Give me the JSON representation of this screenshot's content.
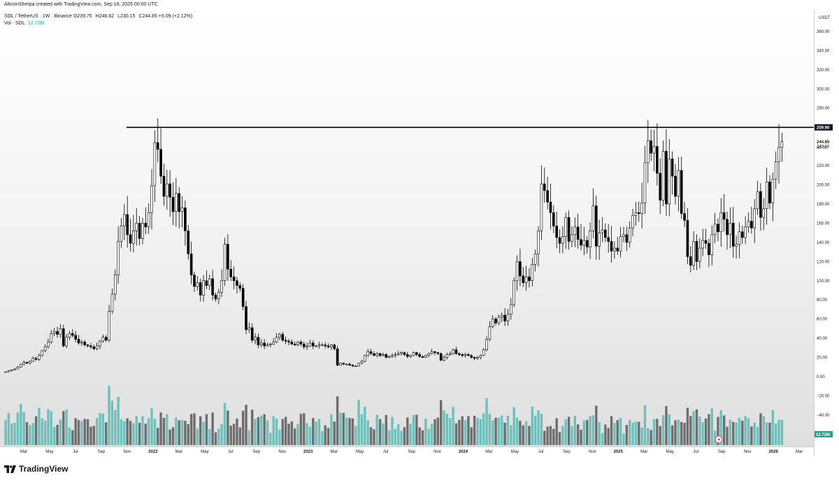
{
  "header": {
    "created_by": "AltcoinSherpa created with TradingView.com, Sep 18, 2025 00:00 UTC",
    "symbol_line": "SOL / TetherUS · 1W · Binance",
    "ohlc": [
      {
        "k": "O",
        "v": "239.75"
      },
      {
        "k": "H",
        "v": "246.62"
      },
      {
        "k": "L",
        "v": "230.15"
      },
      {
        "k": "C",
        "v": "244.85 +5.09 (+2.12%)"
      }
    ],
    "vol_label": "Vol · SOL",
    "vol_value": "12.72M"
  },
  "brand": {
    "name": "TradingView",
    "logo_icon": "tradingview-logo-icon"
  },
  "colors": {
    "candle_up_fill": "#ffffff",
    "candle_down_fill": "#000000",
    "wick": "#000000",
    "volume_up": "#6fc0bb",
    "volume_down": "#6e6e6e",
    "resistance_line": "#000000",
    "price_tag": "#131722",
    "volume_tag": "#2a9d8f",
    "replay_icon": "#d2488c"
  },
  "chart_data": {
    "type": "candlestick",
    "interval": "1W",
    "price_unit": "USDT",
    "ylim": [
      -65,
      370
    ],
    "y_ticks": [
      360,
      340,
      320,
      300,
      280,
      260,
      240,
      220,
      200,
      180,
      160,
      140,
      120,
      100,
      80,
      60,
      40,
      20,
      0,
      -20,
      -40
    ],
    "y_tick_labels": [
      "360.00",
      "340.00",
      "320.00",
      "300.00",
      "280.00",
      "260.00",
      "240.00",
      "220.00",
      "200.00",
      "180.00",
      "160.00",
      "140.00",
      "120.00",
      "100.00",
      "80.00",
      "60.00",
      "40.00",
      "20.00",
      "0.00",
      "−20.00",
      "−40.00"
    ],
    "x_ticks": [
      {
        "label": "Mar",
        "bold": false
      },
      {
        "label": "May",
        "bold": false
      },
      {
        "label": "Jul",
        "bold": false
      },
      {
        "label": "Sep",
        "bold": false
      },
      {
        "label": "Nov",
        "bold": false
      },
      {
        "label": "2022",
        "bold": true
      },
      {
        "label": "Mar",
        "bold": false
      },
      {
        "label": "May",
        "bold": false
      },
      {
        "label": "Jul",
        "bold": false
      },
      {
        "label": "Sep",
        "bold": false
      },
      {
        "label": "Nov",
        "bold": false
      },
      {
        "label": "2023",
        "bold": true
      },
      {
        "label": "Mar",
        "bold": false
      },
      {
        "label": "May",
        "bold": false
      },
      {
        "label": "Jul",
        "bold": false
      },
      {
        "label": "Sep",
        "bold": false
      },
      {
        "label": "Nov",
        "bold": false
      },
      {
        "label": "2024",
        "bold": true
      },
      {
        "label": "Mar",
        "bold": false
      },
      {
        "label": "May",
        "bold": false
      },
      {
        "label": "Jul",
        "bold": false
      },
      {
        "label": "Sep",
        "bold": false
      },
      {
        "label": "Nov",
        "bold": false
      },
      {
        "label": "2025",
        "bold": true
      },
      {
        "label": "Mar",
        "bold": false
      },
      {
        "label": "May",
        "bold": false
      },
      {
        "label": "Jul",
        "bold": false
      },
      {
        "label": "Sep",
        "bold": false
      },
      {
        "label": "Nov",
        "bold": false
      },
      {
        "label": "2026",
        "bold": true
      },
      {
        "label": "Mar",
        "bold": false
      }
    ],
    "horizontal_line": {
      "value": 259.9,
      "label": "259.90"
    },
    "last_price": {
      "value": 244.85,
      "label": "244.85",
      "countdown": "4d 0h"
    },
    "volume_label": "12.72M",
    "closes": [
      5,
      6,
      7,
      8,
      10,
      13,
      15,
      14,
      16,
      19,
      18,
      22,
      27,
      31,
      36,
      45,
      47,
      44,
      50,
      32,
      41,
      45,
      43,
      39,
      35,
      36,
      33,
      32,
      31,
      29,
      32,
      37,
      41,
      38,
      68,
      86,
      106,
      141,
      157,
      169,
      148,
      139,
      152,
      160,
      144,
      160,
      156,
      171,
      199,
      244,
      237,
      209,
      188,
      201,
      187,
      172,
      191,
      172,
      176,
      152,
      128,
      106,
      94,
      98,
      85,
      100,
      95,
      102,
      85,
      81,
      88,
      100,
      138,
      112,
      104,
      100,
      95,
      92,
      73,
      49,
      51,
      38,
      41,
      33,
      35,
      32,
      33,
      34,
      36,
      41,
      44,
      38,
      37,
      36,
      34,
      33,
      36,
      34,
      31,
      32,
      35,
      32,
      32,
      33,
      33,
      32,
      31,
      33,
      29,
      12,
      14,
      13,
      13,
      12,
      11,
      11,
      14,
      16,
      22,
      26,
      24,
      22,
      24,
      22,
      23,
      20,
      21,
      22,
      23,
      24,
      25,
      23,
      21,
      22,
      25,
      23,
      21,
      20,
      22,
      24,
      26,
      25,
      24,
      17,
      20,
      23,
      24,
      28,
      24,
      23,
      22,
      23,
      22,
      20,
      19,
      20,
      22,
      28,
      39,
      52,
      60,
      56,
      62,
      64,
      58,
      65,
      75,
      100,
      120,
      105,
      98,
      104,
      100,
      117,
      128,
      152,
      201,
      194,
      182,
      171,
      157,
      145,
      139,
      146,
      166,
      141,
      148,
      156,
      143,
      137,
      142,
      135,
      152,
      178,
      136,
      150,
      153,
      145,
      141,
      131,
      134,
      131,
      146,
      148,
      140,
      155,
      168,
      171,
      170,
      181,
      223,
      246,
      233,
      240,
      212,
      184,
      235,
      180,
      227,
      209,
      188,
      215,
      170,
      163,
      125,
      116,
      141,
      120,
      134,
      142,
      139,
      127,
      148,
      159,
      151,
      171,
      164,
      148,
      160,
      136,
      138,
      151,
      145,
      156,
      162,
      155,
      175,
      193,
      166,
      175,
      203,
      181,
      206,
      224,
      239,
      245
    ],
    "volume_last": 12.72,
    "volume_units": "M"
  }
}
